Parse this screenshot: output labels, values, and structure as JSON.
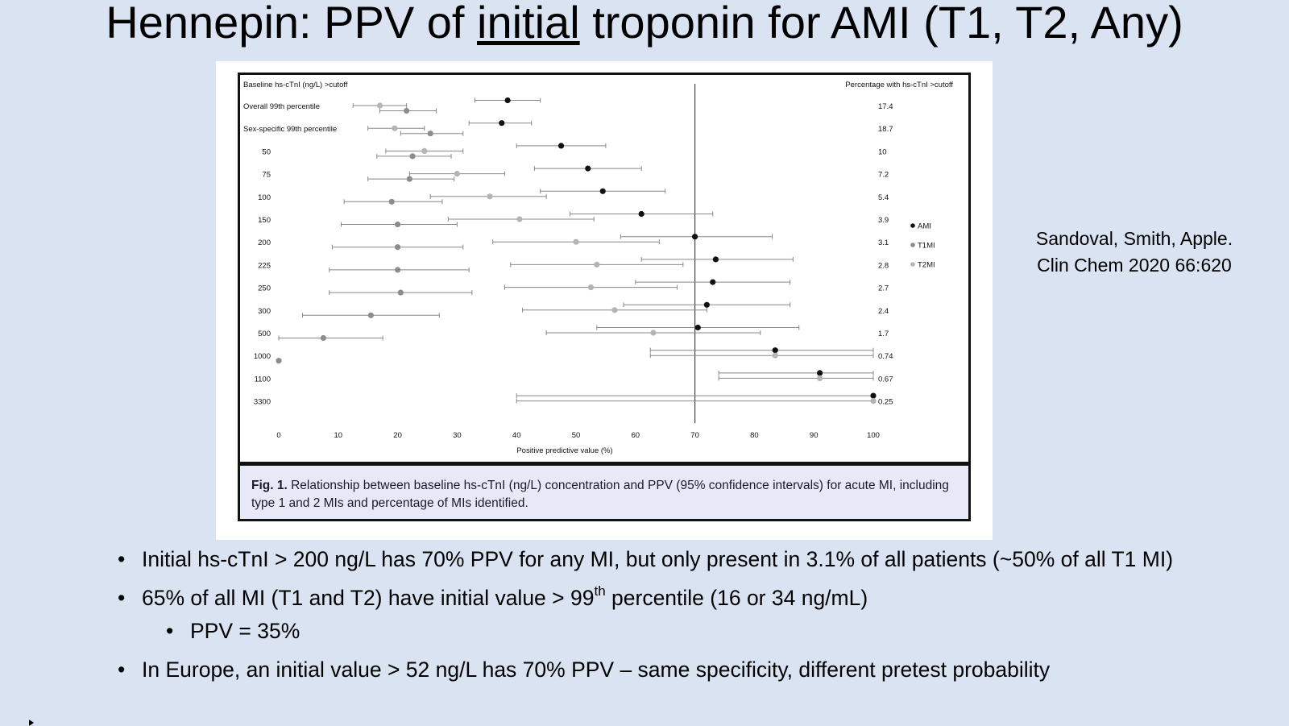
{
  "slide": {
    "title_pre": "Hennepin: PPV of ",
    "title_underlined": "initial",
    "title_post": " troponin for AMI (T1, T2, Any)",
    "citation_line1": "Sandoval, Smith, Apple.",
    "citation_line2": "Clin Chem 2020 66:620"
  },
  "caption": {
    "label": "Fig. 1.",
    "text": "Relationship between baseline hs-cTnI (ng/L) concentration and PPV (95% confidence intervals) for acute MI, including type 1 and 2 MIs and percentage of MIs identified."
  },
  "bullets": [
    {
      "text": "Initial hs-cTnI > 200 ng/L has 70% PPV for any MI, but only present in 3.1% of all patients (~50% of all T1 MI)"
    },
    {
      "text_pre": "65% of all MI (T1 and T2) have initial value > 99",
      "sup": "th",
      "text_post": " percentile (16 or 34 ng/mL)"
    },
    {
      "text": "PPV = 35%",
      "sub": true
    },
    {
      "text": "In Europe, an initial value > 52 ng/L has 70% PPV – same specificity, different pretest probability"
    }
  ],
  "bullet_char": "•",
  "chart_data": {
    "type": "forest",
    "left_header": "Baseline hs-cTnI (ng/L) >cutoff",
    "right_header": "Percentage with hs-cTnI >cutoff",
    "xlabel": "Positive predictive value (%)",
    "xlim": [
      0,
      100
    ],
    "xticks": [
      0,
      10,
      20,
      30,
      40,
      50,
      60,
      70,
      80,
      90,
      100
    ],
    "reference_line": 70,
    "legend": [
      {
        "name": "AMI",
        "color": "#111111"
      },
      {
        "name": "T1MI",
        "color": "#8c8c8c"
      },
      {
        "name": "T2MI",
        "color": "#b4b4b4"
      }
    ],
    "rows": [
      {
        "label": "Overall 99th percentile",
        "pct": "17.4",
        "AMI": {
          "v": 38.5,
          "lo": 33,
          "hi": 44
        },
        "T2MI": {
          "v": 17,
          "lo": 12.5,
          "hi": 21.5
        },
        "T1MI": {
          "v": 21.5,
          "lo": 17,
          "hi": 26.5
        }
      },
      {
        "label": "Sex-specific 99th percentile",
        "pct": "18.7",
        "AMI": {
          "v": 37.5,
          "lo": 32,
          "hi": 42.5
        },
        "T2MI": {
          "v": 19.5,
          "lo": 15,
          "hi": 24.5
        },
        "T1MI": {
          "v": 25.5,
          "lo": 20.5,
          "hi": 31
        }
      },
      {
        "label": "50",
        "pct": "10",
        "AMI": {
          "v": 47.5,
          "lo": 40,
          "hi": 55
        },
        "T2MI": {
          "v": 24.5,
          "lo": 18,
          "hi": 31
        },
        "T1MI": {
          "v": 22.5,
          "lo": 16.5,
          "hi": 29
        }
      },
      {
        "label": "75",
        "pct": "7.2",
        "AMI": {
          "v": 52,
          "lo": 43,
          "hi": 61
        },
        "T2MI": {
          "v": 30,
          "lo": 22,
          "hi": 38
        },
        "T1MI": {
          "v": 22,
          "lo": 15,
          "hi": 29.5
        }
      },
      {
        "label": "100",
        "pct": "5.4",
        "AMI": {
          "v": 54.5,
          "lo": 44,
          "hi": 65
        },
        "T2MI": {
          "v": 35.5,
          "lo": 25.5,
          "hi": 45
        },
        "T1MI": {
          "v": 19,
          "lo": 11,
          "hi": 27.5
        }
      },
      {
        "label": "150",
        "pct": "3.9",
        "AMI": {
          "v": 61,
          "lo": 49,
          "hi": 73
        },
        "T2MI": {
          "v": 40.5,
          "lo": 28.5,
          "hi": 53
        },
        "T1MI": {
          "v": 20,
          "lo": 10.5,
          "hi": 30
        }
      },
      {
        "label": "200",
        "pct": "3.1",
        "AMI": {
          "v": 70,
          "lo": 57.5,
          "hi": 83
        },
        "T2MI": {
          "v": 50,
          "lo": 36,
          "hi": 64
        },
        "T1MI": {
          "v": 20,
          "lo": 9,
          "hi": 31
        }
      },
      {
        "label": "225",
        "pct": "2.8",
        "AMI": {
          "v": 73.5,
          "lo": 61,
          "hi": 86.5
        },
        "T2MI": {
          "v": 53.5,
          "lo": 39,
          "hi": 68
        },
        "T1MI": {
          "v": 20,
          "lo": 8.5,
          "hi": 32
        }
      },
      {
        "label": "250",
        "pct": "2.7",
        "AMI": {
          "v": 73,
          "lo": 60,
          "hi": 86
        },
        "T2MI": {
          "v": 52.5,
          "lo": 38,
          "hi": 67
        },
        "T1MI": {
          "v": 20.5,
          "lo": 8.5,
          "hi": 32.5
        }
      },
      {
        "label": "300",
        "pct": "2.4",
        "AMI": {
          "v": 72,
          "lo": 58,
          "hi": 86
        },
        "T2MI": {
          "v": 56.5,
          "lo": 41,
          "hi": 72
        },
        "T1MI": {
          "v": 15.5,
          "lo": 4,
          "hi": 27
        }
      },
      {
        "label": "500",
        "pct": "1.7",
        "AMI": {
          "v": 70.5,
          "lo": 53.5,
          "hi": 87.5
        },
        "T2MI": {
          "v": 63,
          "lo": 45,
          "hi": 81
        },
        "T1MI": {
          "v": 7.5,
          "lo": 0,
          "hi": 17.5
        }
      },
      {
        "label": "1000",
        "pct": "0.74",
        "AMI": {
          "v": 83.5,
          "lo": 62.5,
          "hi": 100
        },
        "T2MI": {
          "v": 83.5,
          "lo": 62.5,
          "hi": 100
        },
        "T1MI": {
          "v": 0,
          "lo": 0,
          "hi": 0
        }
      },
      {
        "label": "1100",
        "pct": "0.67",
        "AMI": {
          "v": 91,
          "lo": 74,
          "hi": 100
        },
        "T2MI": {
          "v": 91,
          "lo": 74,
          "hi": 100
        },
        "T1MI": null
      },
      {
        "label": "3300",
        "pct": "0.25",
        "AMI": {
          "v": 100,
          "lo": 40,
          "hi": 100
        },
        "T2MI": {
          "v": 100,
          "lo": 40,
          "hi": 100
        },
        "T1MI": null
      }
    ]
  }
}
